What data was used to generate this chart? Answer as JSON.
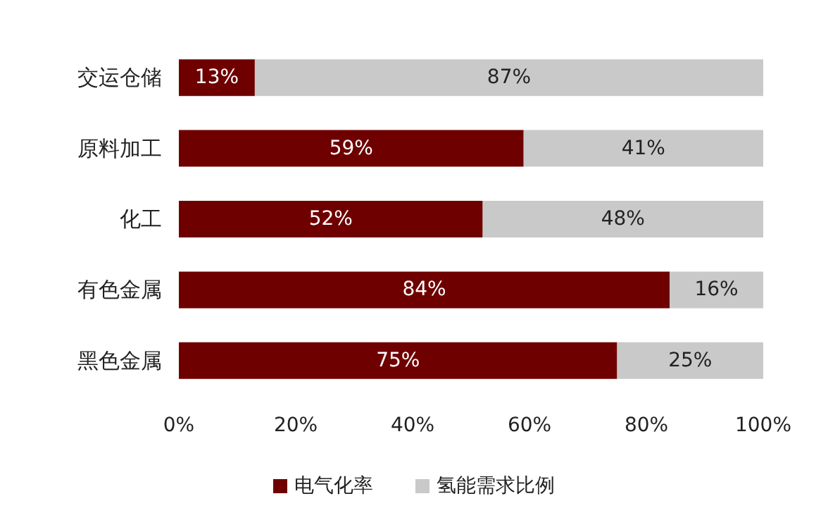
{
  "chart_data": {
    "type": "bar",
    "orientation": "horizontal",
    "stacked": true,
    "categories": [
      "交运仓储",
      "原料加工",
      "化工",
      "有色金属",
      "黑色金属"
    ],
    "series": [
      {
        "name": "电气化率",
        "color": "#6e0000",
        "values": [
          13,
          59,
          52,
          84,
          75
        ],
        "value_labels": [
          "13%",
          "59%",
          "52%",
          "84%",
          "75%"
        ]
      },
      {
        "name": "氢能需求比例",
        "color": "#c9c9c9",
        "values": [
          87,
          41,
          48,
          16,
          25
        ],
        "value_labels": [
          "87%",
          "41%",
          "48%",
          "16%",
          "25%"
        ]
      }
    ],
    "xlim": [
      0,
      100
    ],
    "xticks": [
      {
        "value": 0,
        "label": "0%"
      },
      {
        "value": 20,
        "label": "20%"
      },
      {
        "value": 40,
        "label": "40%"
      },
      {
        "value": 60,
        "label": "60%"
      },
      {
        "value": 80,
        "label": "80%"
      },
      {
        "value": 100,
        "label": "100%"
      }
    ],
    "grid": false,
    "legend": "bottom"
  }
}
